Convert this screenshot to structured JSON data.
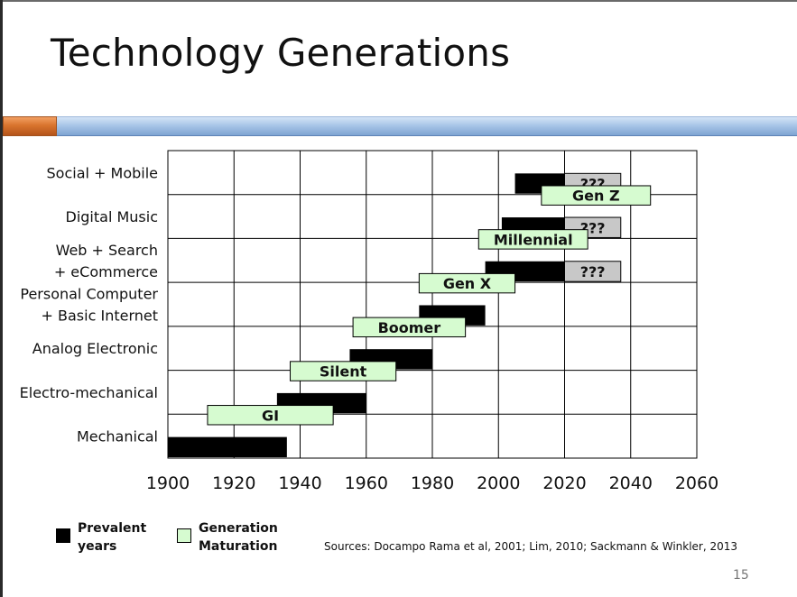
{
  "slide": {
    "title": "Technology Generations",
    "sources": "Sources: Docampo Rama et al, 2001; Lim, 2010; Sackmann & Winkler, 2013",
    "page_number": "15"
  },
  "colors": {
    "prevalent": "#000000",
    "generation": "#d6fbd0",
    "unknown": "#c8c8c8",
    "grid": "#000000",
    "title_band": "#8fb2dd",
    "band_accent": "#d9742e"
  },
  "legend": {
    "prevalent": [
      "Prevalent",
      "years"
    ],
    "generation": [
      "Generation",
      "Maturation"
    ]
  },
  "chart_data": {
    "type": "bar",
    "subtype": "gantt",
    "x_ticks": [
      1900,
      1920,
      1940,
      1960,
      1980,
      2000,
      2020,
      2040,
      2060
    ],
    "xlim": [
      1900,
      2060
    ],
    "grid": true,
    "rows": [
      {
        "id": "mechanical",
        "lines": [
          "Mechanical"
        ]
      },
      {
        "id": "electro-mechanical",
        "lines": [
          "Electro-mechanical"
        ]
      },
      {
        "id": "analog-electronic",
        "lines": [
          "Analog Electronic"
        ]
      },
      {
        "id": "personal-computer",
        "lines": [
          "Personal Computer",
          "+ Basic Internet"
        ]
      },
      {
        "id": "web-search",
        "lines": [
          "Web + Search",
          "+ eCommerce"
        ]
      },
      {
        "id": "digital-music",
        "lines": [
          "Digital Music"
        ]
      },
      {
        "id": "social-mobile",
        "lines": [
          "Social + Mobile"
        ]
      }
    ],
    "prevalent_years": [
      {
        "row": 0,
        "start": 1900,
        "end": 1936
      },
      {
        "row": 1,
        "start": 1933,
        "end": 1960
      },
      {
        "row": 2,
        "start": 1955,
        "end": 1980
      },
      {
        "row": 3,
        "start": 1976,
        "end": 1996
      },
      {
        "row": 4,
        "start": 1996,
        "end": 2020
      },
      {
        "row": 5,
        "start": 2001,
        "end": 2020
      },
      {
        "row": 6,
        "start": 2005,
        "end": 2020
      }
    ],
    "unknown_extensions": [
      {
        "row": 4,
        "start": 2020,
        "end": 2037,
        "label": "???"
      },
      {
        "row": 5,
        "start": 2020,
        "end": 2037,
        "label": "???"
      },
      {
        "row": 6,
        "start": 2020,
        "end": 2037,
        "label": "???"
      }
    ],
    "generations": [
      {
        "name": "GI",
        "row": 0,
        "start": 1912,
        "end": 1950
      },
      {
        "name": "Silent",
        "row": 1,
        "start": 1937,
        "end": 1969
      },
      {
        "name": "Boomer",
        "row": 2,
        "start": 1956,
        "end": 1990
      },
      {
        "name": "Gen X",
        "row": 3,
        "start": 1976,
        "end": 2005
      },
      {
        "name": "Millennial",
        "row": 4,
        "start": 1994,
        "end": 2027
      },
      {
        "name": "Gen Z",
        "row": 5,
        "start": 2013,
        "end": 2046
      }
    ]
  }
}
